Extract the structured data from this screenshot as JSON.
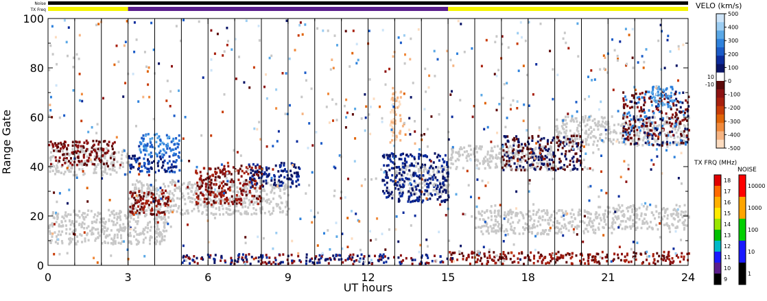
{
  "chart_data": {
    "type": "heatmap",
    "xlabel": "UT hours",
    "ylabel": "Range Gate",
    "xlim": [
      0,
      24
    ],
    "ylim": [
      0,
      100
    ],
    "x_ticks": [
      "0",
      "3",
      "6",
      "9",
      "12",
      "15",
      "18",
      "21",
      "24"
    ],
    "y_ticks": [
      "0",
      "20",
      "40",
      "60",
      "80",
      "100"
    ],
    "strip_labels": {
      "noise": "Noise",
      "txfreq": "TX Freq"
    },
    "noise_strip": [
      {
        "from": 0,
        "to": 24,
        "color": "#000000"
      }
    ],
    "txfreq_strip": [
      {
        "from": 0,
        "to": 3,
        "color": "#f4f400"
      },
      {
        "from": 3,
        "to": 15,
        "color": "#5a1e8c"
      },
      {
        "from": 15,
        "to": 24,
        "color": "#f4f400"
      }
    ],
    "scan_separators_ut": [
      1,
      2,
      3,
      4,
      5,
      6,
      7,
      8,
      9,
      10,
      11,
      12,
      13,
      14,
      15,
      16,
      17,
      18,
      19,
      20,
      21,
      22,
      23
    ],
    "ground_scatter_color": "#c8c8c8",
    "velocity_colorbar": {
      "title": "VELO (km/s)",
      "ticks": [
        "500",
        "400",
        "300",
        "200",
        "100",
        "0",
        "-100",
        "-200",
        "-300",
        "-400",
        "-500"
      ],
      "gs_ticks": [
        "10",
        "-10"
      ],
      "colors": [
        "#cde4f8",
        "#9ccdf2",
        "#5aa8e6",
        "#2f82dc",
        "#1c5cc8",
        "#0c2c9c",
        "#0a1466",
        "#ffffff",
        "#5c0a0a",
        "#8c1212",
        "#a8200e",
        "#c83c08",
        "#e06408",
        "#f08a3c",
        "#f6b482",
        "#fcdcc0"
      ]
    },
    "txfreq_colorbar": {
      "title": "TX FRQ (MHz)",
      "labels": [
        "18",
        "17",
        "16",
        "15",
        "14",
        "13",
        "12",
        "11",
        "10",
        "9"
      ],
      "colors": [
        "#e00000",
        "#ff6a00",
        "#ffb000",
        "#ffea00",
        "#9ae600",
        "#00c000",
        "#00b8c8",
        "#1a1aff",
        "#5a1e8c",
        "#000000"
      ]
    },
    "noise_colorbar": {
      "title": "NOISE",
      "labels": [
        "10000",
        "1000",
        "100",
        "10",
        "1"
      ],
      "colors": [
        "#ff0000",
        "#ffa500",
        "#00d000",
        "#1a1aff",
        "#000000"
      ]
    },
    "ground_scatter_bands": [
      {
        "x0": 0,
        "x1": 3,
        "g0": 36,
        "g1": 47
      },
      {
        "x0": 0,
        "x1": 4.5,
        "g0": 8,
        "g1": 22
      },
      {
        "x0": 3,
        "x1": 9,
        "g0": 20,
        "g1": 34
      },
      {
        "x0": 13,
        "x1": 15,
        "g0": 28,
        "g1": 40
      },
      {
        "x0": 15,
        "x1": 19,
        "g0": 38,
        "g1": 48
      },
      {
        "x0": 16,
        "x1": 20.5,
        "g0": 12,
        "g1": 22
      },
      {
        "x0": 19,
        "x1": 24,
        "g0": 48,
        "g1": 60
      },
      {
        "x0": 20.5,
        "x1": 24,
        "g0": 14,
        "g1": 24
      }
    ],
    "echo_blobs": [
      {
        "x0": 3,
        "x1": 4.9,
        "g0": 37,
        "g1": 44,
        "colors": [
          "#0c2c9c",
          "#0a1466",
          "#1c5cc8"
        ]
      },
      {
        "x0": 3.4,
        "x1": 4.9,
        "g0": 44,
        "g1": 53,
        "colors": [
          "#2f82dc",
          "#5aa8e6",
          "#1c5cc8"
        ]
      },
      {
        "x0": 7.5,
        "x1": 9.4,
        "g0": 31,
        "g1": 41,
        "colors": [
          "#0a1466",
          "#0c2c9c"
        ]
      },
      {
        "x0": 12.5,
        "x1": 15,
        "g0": 25,
        "g1": 45,
        "colors": [
          "#0a1466",
          "#0c2c9c"
        ]
      },
      {
        "x0": 3,
        "x1": 4.5,
        "g0": 20,
        "g1": 30,
        "colors": [
          "#5c0a0a",
          "#8c1212",
          "#a8200e"
        ]
      },
      {
        "x0": 5.5,
        "x1": 8,
        "g0": 24,
        "g1": 40,
        "colors": [
          "#8c1212",
          "#a8200e",
          "#5c0a0a"
        ]
      },
      {
        "x0": 0,
        "x1": 2.5,
        "g0": 40,
        "g1": 50,
        "colors": [
          "#5c0a0a",
          "#8c1212"
        ]
      },
      {
        "x0": 17,
        "x1": 20,
        "g0": 38,
        "g1": 52,
        "colors": [
          "#0a1466",
          "#5c0a0a"
        ]
      },
      {
        "x0": 21.5,
        "x1": 24,
        "g0": 48,
        "g1": 70,
        "colors": [
          "#5c0a0a",
          "#0a1466",
          "#2f82dc",
          "#8c1212"
        ]
      },
      {
        "x0": 15,
        "x1": 24,
        "g0": 0,
        "g1": 5,
        "colors": [
          "#8c1212",
          "#5c0a0a",
          "#a8200e"
        ]
      },
      {
        "x0": 5,
        "x1": 15,
        "g0": 0,
        "g1": 4,
        "colors": [
          "#0a1466",
          "#0c2c9c",
          "#8c1212"
        ]
      },
      {
        "x0": 12.8,
        "x1": 13.2,
        "g0": 50,
        "g1": 70,
        "colors": [
          "#fcdcc0",
          "#f6b482"
        ]
      },
      {
        "x0": 22.6,
        "x1": 23.4,
        "g0": 64,
        "g1": 72,
        "colors": [
          "#2f82dc",
          "#5aa8e6"
        ]
      }
    ]
  }
}
